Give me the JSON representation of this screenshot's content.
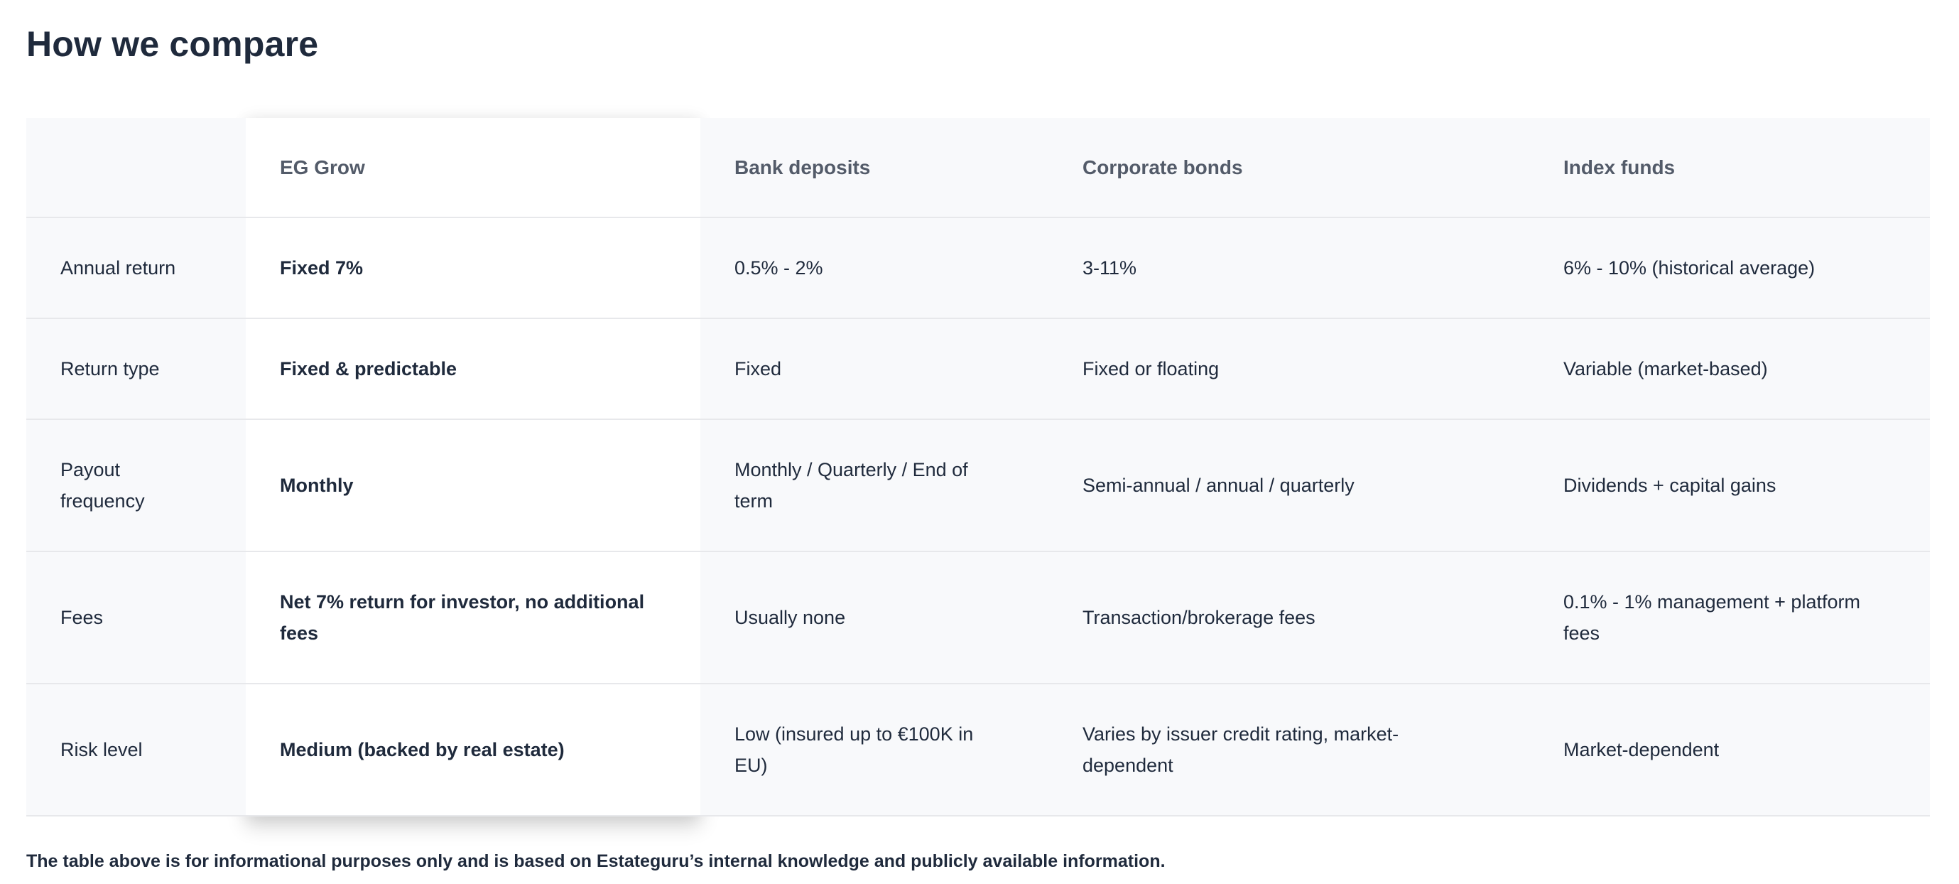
{
  "page": {
    "title": "How we compare"
  },
  "table": {
    "columns": [
      {
        "label": ""
      },
      {
        "label": "EG Grow",
        "highlighted": true
      },
      {
        "label": "Bank deposits"
      },
      {
        "label": "Corporate bonds"
      },
      {
        "label": "Index funds"
      }
    ],
    "rows": [
      {
        "label": "Annual return",
        "cells": [
          "Fixed 7%",
          "0.5% - 2%",
          "3-11%",
          "6% - 10% (historical average)"
        ]
      },
      {
        "label": "Return type",
        "cells": [
          "Fixed & predictable",
          "Fixed",
          "Fixed or floating",
          "Variable (market-based)"
        ]
      },
      {
        "label": "Payout frequency",
        "cells": [
          "Monthly",
          "Monthly / Quarterly / End of term",
          "Semi-annual / annual / quarterly",
          "Dividends + capital gains"
        ]
      },
      {
        "label": "Fees",
        "cells": [
          "Net 7% return for investor, no additional fees",
          "Usually none",
          "Transaction/brokerage fees",
          "0.1% - 1% management + platform fees"
        ]
      },
      {
        "label": "Risk level",
        "cells": [
          "Medium (backed by real estate)",
          "Low (insured up to €100K in EU)",
          "Varies by issuer credit rating, market-dependent",
          "Market-dependent"
        ]
      }
    ]
  },
  "footnote": "The table above is for informational purposes only and is based on Estateguru’s internal knowledge and publicly available information.",
  "colors": {
    "title": "#1f2a3c",
    "header_text": "#535b69",
    "body_text": "#1f2a3c",
    "table_bg": "#f8f9fb",
    "highlight_bg": "#ffffff",
    "border": "#e7e8eb"
  }
}
